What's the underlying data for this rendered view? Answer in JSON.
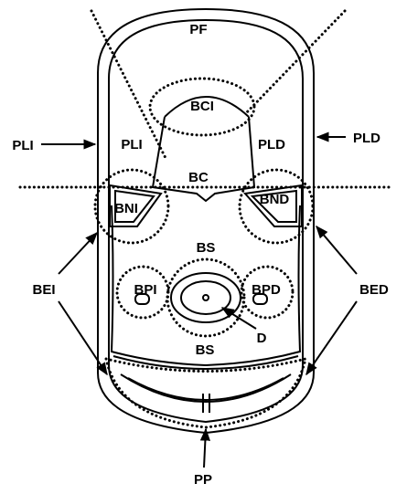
{
  "labels": {
    "pf": "PF",
    "bci": "BCI",
    "pli_outer": "PLI",
    "pli_inner": "PLI",
    "pld_inner": "PLD",
    "pld_outer": "PLD",
    "bc": "BC",
    "bni": "BNI",
    "bnd": "BND",
    "bs_upper": "BS",
    "bei": "BEI",
    "bed": "BED",
    "bpi": "BPI",
    "bpd": "BPD",
    "d": "D",
    "bs_lower": "BS",
    "pp": "PP"
  }
}
